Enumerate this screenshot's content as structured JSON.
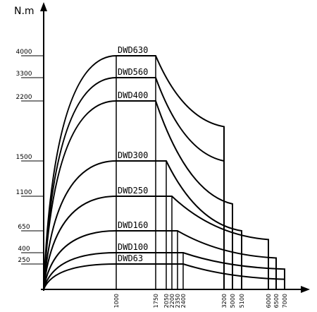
{
  "chart_data": {
    "type": "line",
    "y_label": "N.m",
    "xticks": [
      1000,
      1750,
      2050,
      2200,
      2350,
      2400,
      3200,
      5000,
      5100,
      6000,
      6500,
      7000
    ],
    "yticks": [
      250,
      400,
      650,
      1100,
      1500,
      2200,
      3300,
      4000
    ],
    "series": [
      {
        "name": "DWD630",
        "x": [
          0,
          1000,
          1750,
          3200,
          3200
        ],
        "values": [
          0,
          4000,
          4000,
          1900,
          0
        ]
      },
      {
        "name": "DWD560",
        "x": [
          0,
          1000,
          1750,
          3200,
          3200
        ],
        "values": [
          0,
          3300,
          3300,
          1500,
          0
        ]
      },
      {
        "name": "DWD400",
        "x": [
          0,
          1000,
          1750,
          5000,
          5000
        ],
        "values": [
          0,
          2200,
          2200,
          1000,
          0
        ]
      },
      {
        "name": "DWD300",
        "x": [
          0,
          1000,
          2050,
          5100,
          5100
        ],
        "values": [
          0,
          1500,
          1500,
          650,
          0
        ]
      },
      {
        "name": "DWD250",
        "x": [
          0,
          1000,
          2200,
          6000,
          6000
        ],
        "values": [
          0,
          1100,
          1100,
          550,
          0
        ]
      },
      {
        "name": "DWD160",
        "x": [
          0,
          1000,
          2350,
          6500,
          6500
        ],
        "values": [
          0,
          650,
          650,
          330,
          0
        ]
      },
      {
        "name": "DWD100",
        "x": [
          0,
          1000,
          2400,
          7000,
          7000
        ],
        "values": [
          0,
          400,
          400,
          200,
          0
        ]
      },
      {
        "name": "DWD63",
        "x": [
          0,
          1000,
          2400,
          7000,
          7000
        ],
        "values": [
          0,
          250,
          250,
          100,
          0
        ]
      }
    ]
  }
}
